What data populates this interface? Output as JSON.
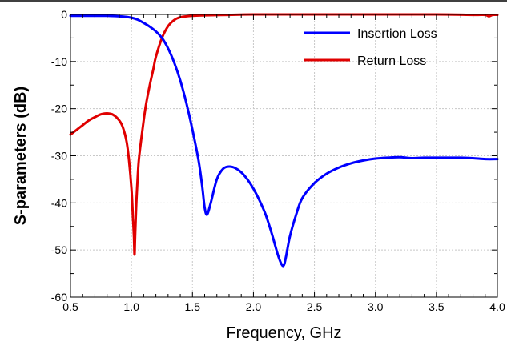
{
  "chart_data": {
    "type": "line",
    "title": "",
    "xlabel": "Frequency, GHz",
    "ylabel": "S-parameters (dB)",
    "xlim": [
      0.5,
      4.0
    ],
    "ylim": [
      -60,
      0
    ],
    "x_ticks": [
      "0.5",
      "1.0",
      "1.5",
      "2.0",
      "2.5",
      "3.0",
      "3.5",
      "4.0"
    ],
    "y_ticks": [
      "0",
      "-10",
      "-20",
      "-30",
      "-40",
      "-50",
      "-60"
    ],
    "grid": true,
    "legend_position": "top-right",
    "series": [
      {
        "name": "Insertion Loss",
        "color": "#0000ff",
        "x": [
          0.5,
          0.6,
          0.7,
          0.8,
          0.9,
          0.95,
          1.0,
          1.05,
          1.1,
          1.15,
          1.2,
          1.25,
          1.3,
          1.35,
          1.4,
          1.45,
          1.5,
          1.55,
          1.58,
          1.6,
          1.62,
          1.65,
          1.7,
          1.75,
          1.8,
          1.85,
          1.9,
          1.95,
          2.0,
          2.05,
          2.1,
          2.15,
          2.2,
          2.23,
          2.25,
          2.27,
          2.3,
          2.35,
          2.4,
          2.5,
          2.6,
          2.7,
          2.8,
          2.9,
          3.0,
          3.1,
          3.2,
          3.3,
          3.4,
          3.5,
          3.6,
          3.7,
          3.8,
          3.9,
          4.0
        ],
        "y": [
          -0.3,
          -0.3,
          -0.3,
          -0.3,
          -0.4,
          -0.5,
          -0.7,
          -1.1,
          -1.8,
          -2.6,
          -3.6,
          -5.0,
          -7.2,
          -10.2,
          -14.0,
          -18.8,
          -24.5,
          -31.0,
          -36.5,
          -41.0,
          -42.5,
          -40.0,
          -35.0,
          -32.8,
          -32.3,
          -32.6,
          -33.5,
          -35.0,
          -37.0,
          -39.5,
          -42.5,
          -46.5,
          -51.0,
          -53.0,
          -53.2,
          -51.0,
          -47.0,
          -42.5,
          -39.0,
          -35.8,
          -33.8,
          -32.5,
          -31.6,
          -31.0,
          -30.6,
          -30.4,
          -30.3,
          -30.5,
          -30.4,
          -30.4,
          -30.4,
          -30.4,
          -30.5,
          -30.7,
          -30.7
        ]
      },
      {
        "name": "Return Loss",
        "color": "#e00000",
        "x": [
          0.5,
          0.55,
          0.6,
          0.65,
          0.7,
          0.75,
          0.8,
          0.85,
          0.9,
          0.93,
          0.96,
          0.98,
          1.0,
          1.01,
          1.02,
          1.025,
          1.03,
          1.04,
          1.05,
          1.06,
          1.08,
          1.1,
          1.12,
          1.15,
          1.18,
          1.2,
          1.25,
          1.3,
          1.35,
          1.4,
          1.5,
          1.6,
          1.8,
          2.0,
          2.5,
          3.0,
          3.5,
          3.8,
          3.9,
          3.93,
          3.96,
          4.0
        ],
        "y": [
          -25.5,
          -24.5,
          -23.5,
          -22.5,
          -21.8,
          -21.2,
          -21.0,
          -21.3,
          -22.5,
          -24.0,
          -27.0,
          -31.0,
          -37.0,
          -42.0,
          -47.0,
          -51.0,
          -47.0,
          -40.0,
          -35.0,
          -31.0,
          -26.5,
          -22.5,
          -19.0,
          -15.0,
          -11.5,
          -9.0,
          -5.0,
          -2.5,
          -1.2,
          -0.6,
          -0.3,
          -0.2,
          -0.1,
          0.0,
          0.0,
          0.0,
          0.0,
          -0.1,
          -0.1,
          -0.4,
          -0.1,
          -0.1
        ]
      }
    ]
  }
}
